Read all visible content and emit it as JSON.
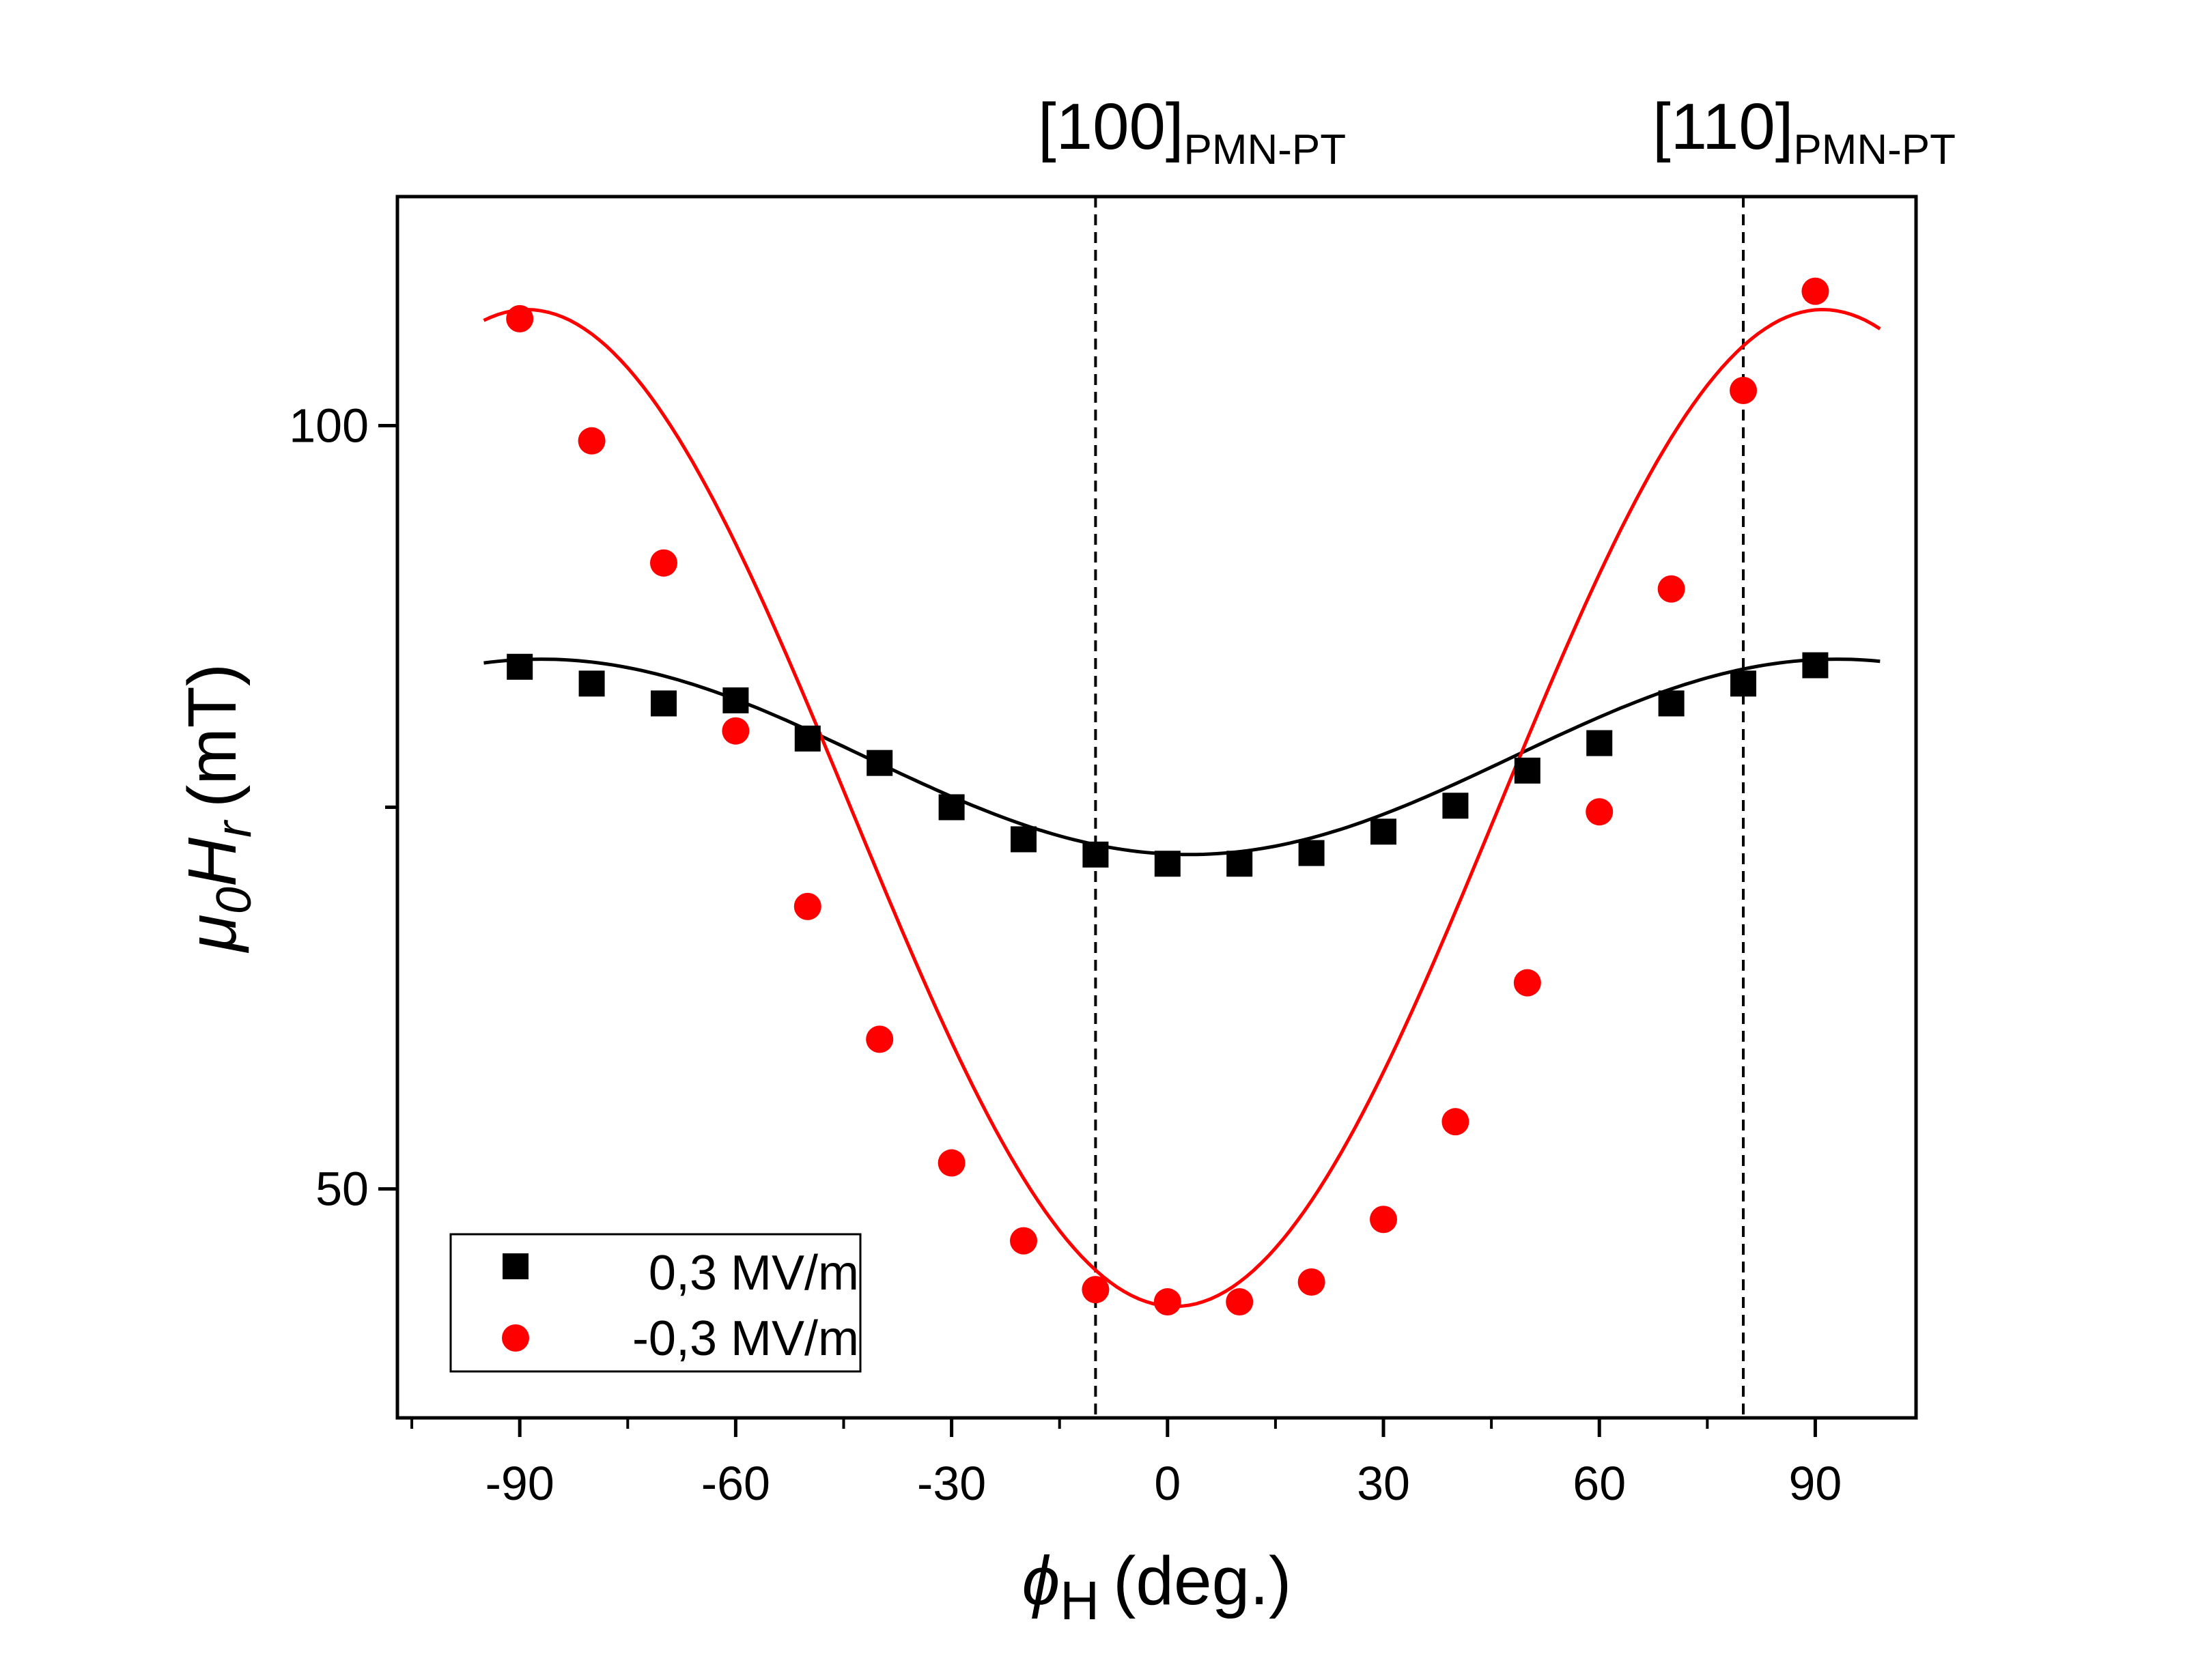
{
  "colors": {
    "series_1": "#000000",
    "series_2": "#ff0000",
    "axis": "#000000"
  },
  "chart_data": {
    "type": "scatter",
    "title": "",
    "xlabel": {
      "symbol": "ϕ",
      "subscript": "H",
      "unit": "(deg.)"
    },
    "ylabel": {
      "mu": "μ",
      "mu_sub": "0",
      "h": "H",
      "h_sub": "r",
      "unit": "(mT)"
    },
    "xlim": [
      -107,
      104
    ],
    "ylim": [
      35,
      115
    ],
    "x_ticks": [
      -90,
      -60,
      -30,
      0,
      30,
      60,
      90
    ],
    "x_tick_labels": [
      "-90",
      "-60",
      "-30",
      "0",
      "30",
      "60",
      "90"
    ],
    "y_ticks": [
      50,
      75,
      100
    ],
    "y_tick_labels": [
      "50",
      "",
      "100"
    ],
    "annotations": [
      {
        "x": -10,
        "main": "[100]",
        "sub": "PMN-PT"
      },
      {
        "x": 80,
        "main": "[110]",
        "sub": "PMN-PT"
      }
    ],
    "legend_position": "bottom-left",
    "series": [
      {
        "name": "0,3 MV/m",
        "marker": "square",
        "color": "#000000",
        "x": [
          -90,
          -80,
          -70,
          -60,
          -50,
          -40,
          -30,
          -20,
          -10,
          0,
          10,
          20,
          30,
          40,
          50,
          60,
          70,
          80,
          90
        ],
        "y": [
          84.2,
          83.1,
          81.8,
          82.0,
          79.5,
          77.9,
          75.0,
          72.9,
          71.9,
          71.3,
          71.3,
          72.0,
          73.4,
          75.1,
          77.4,
          79.2,
          81.8,
          83.1,
          84.3
        ],
        "fit_y_min": 71.9,
        "fit_y_max": 84.7
      },
      {
        "name": "-0,3 MV/m",
        "marker": "circle",
        "color": "#ff0000",
        "x": [
          -90,
          -80,
          -70,
          -60,
          -50,
          -40,
          -30,
          -20,
          -10,
          0,
          10,
          20,
          30,
          40,
          50,
          60,
          70,
          80,
          90
        ],
        "y": [
          107.0,
          99.0,
          91.0,
          80.0,
          68.5,
          59.8,
          51.7,
          46.6,
          43.4,
          42.6,
          42.6,
          43.9,
          48.0,
          54.4,
          63.5,
          74.7,
          89.3,
          102.3,
          108.8
        ],
        "fit_y_min": 42.3,
        "fit_y_max": 107.6
      }
    ]
  }
}
